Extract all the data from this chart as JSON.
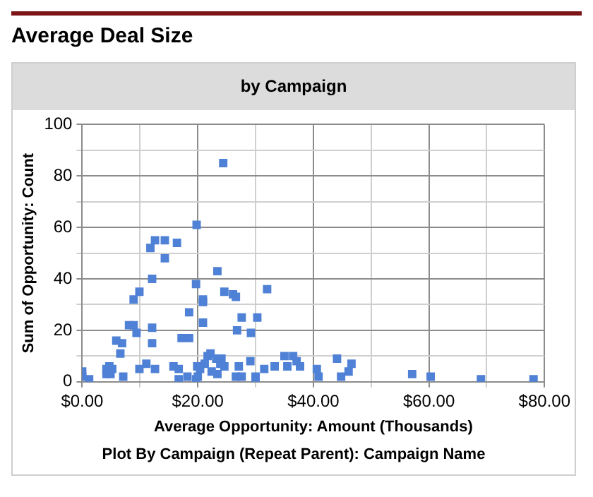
{
  "chart_data": {
    "type": "scatter",
    "title": "Average Deal Size",
    "subtitle": "by Campaign",
    "xlabel": "Average Opportunity: Amount (Thousands)",
    "ylabel": "Sum of Opportunity: Count",
    "annotations": [
      "Plot By Campaign (Repeat Parent): Campaign Name"
    ],
    "x": [
      24.4,
      19.8,
      12.6,
      14.3,
      16.4,
      11.8,
      14.3,
      23.4,
      12.1,
      19.7,
      9.9,
      24.6,
      26.1,
      26.6,
      8.9,
      20.9,
      20.9,
      18.5,
      20.9,
      8.1,
      8.9,
      12.1,
      27.6,
      9.4,
      26.8,
      29.2,
      5.9,
      6.9,
      12.1,
      17.2,
      18.5,
      6.6,
      21.7,
      22.2,
      23.2,
      24.1,
      23.9,
      24.6,
      21.2,
      29.1,
      27.1,
      11.1,
      4.7,
      5.2,
      4.2,
      9.9,
      12.6,
      15.8,
      16.7,
      19.9,
      20.4,
      22.4,
      4.2,
      4.9,
      7.1,
      0,
      0,
      1.2,
      16.7,
      18.2,
      19.7,
      20,
      23.4,
      26.6,
      27.6,
      32,
      30.3,
      35,
      36.5,
      37.1,
      44.1,
      46.6,
      33.3,
      35.5,
      37.7,
      31.5,
      40.6,
      46.1,
      30,
      30,
      40.9,
      44.8,
      57.1,
      60.3,
      69,
      78.1
    ],
    "values": [
      85,
      61,
      55,
      55,
      54,
      52,
      48,
      43,
      40,
      38,
      35,
      35,
      34,
      33,
      32,
      32,
      31,
      27,
      23,
      22,
      22,
      21,
      25,
      19,
      20,
      19,
      16,
      15,
      15,
      17,
      17,
      11,
      10,
      11,
      9,
      9,
      7,
      6,
      7,
      8,
      6,
      7,
      6,
      5,
      5,
      5,
      5,
      6,
      5,
      6,
      5,
      4,
      3,
      3,
      2,
      4,
      2,
      1,
      1,
      2,
      1,
      2,
      3,
      2,
      2,
      36,
      25,
      10,
      10,
      8,
      9,
      7,
      6,
      6,
      6,
      5,
      5,
      4,
      2,
      1,
      2,
      2,
      3,
      2,
      1,
      1
    ],
    "color": "#4f81d6",
    "marker": "square",
    "xlim": [
      0,
      80
    ],
    "ylim": [
      0,
      100
    ],
    "xticks": [
      {
        "value": 0,
        "label": "$0.00"
      },
      {
        "value": 10,
        "label": null
      },
      {
        "value": 20,
        "label": "$20.00"
      },
      {
        "value": 30,
        "label": null
      },
      {
        "value": 40,
        "label": "$40.00"
      },
      {
        "value": 50,
        "label": null
      },
      {
        "value": 60,
        "label": "$60.00"
      },
      {
        "value": 70,
        "label": null
      },
      {
        "value": 80,
        "label": "$80.00"
      }
    ],
    "yticks": [
      0,
      {
        "value": 10,
        "label": null
      },
      20,
      {
        "value": 30,
        "label": null
      },
      40,
      {
        "value": 50,
        "label": null
      },
      60,
      {
        "value": 70,
        "label": null
      },
      80,
      {
        "value": 90,
        "label": null
      },
      100
    ],
    "grid": true
  }
}
